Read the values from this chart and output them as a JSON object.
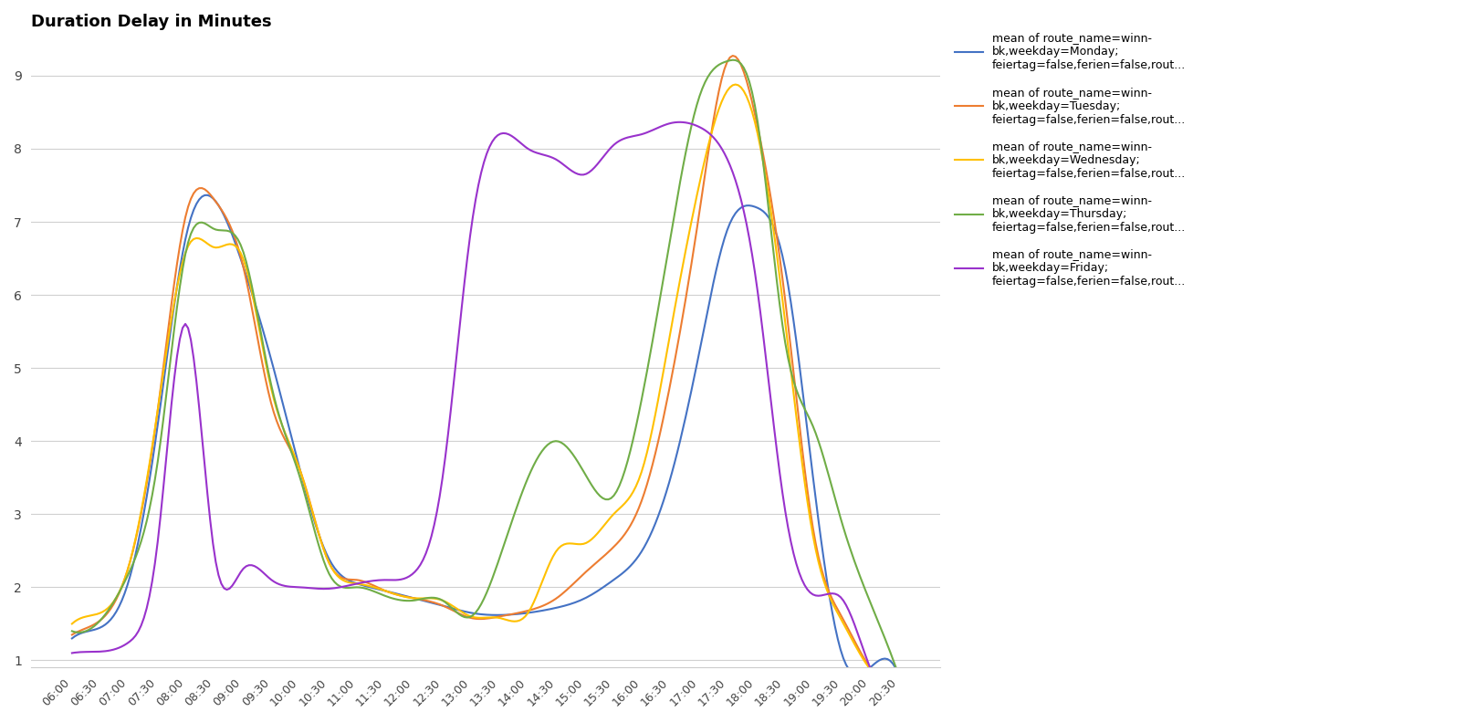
{
  "title": "Duration Delay in Minutes",
  "colors": {
    "monday": "#4472c4",
    "tuesday": "#ed7d31",
    "wednesday": "#ffc000",
    "thursday": "#70ad47",
    "friday": "#9932cc"
  },
  "legend_labels": {
    "monday": "mean of route_name=winn-\nbk,weekday=Monday;\nfeiertag=false,ferien=false,rout...",
    "tuesday": "mean of route_name=winn-\nbk,weekday=Tuesday;\nfeiertag=false,ferien=false,rout...",
    "wednesday": "mean of route_name=winn-\nbk,weekday=Wednesday;\nfeiertag=false,ferien=false,rout...",
    "thursday": "mean of route_name=winn-\nbk,weekday=Thursday;\nfeiertag=false,ferien=false,rout...",
    "friday": "mean of route_name=winn-\nbk,weekday=Friday;\nfeiertag=false,ferien=false,rout..."
  },
  "x_ticks": [
    "06:00",
    "06:30",
    "07:00",
    "07:30",
    "08:00",
    "08:30",
    "09:00",
    "09:30",
    "10:00",
    "10:30",
    "11:00",
    "11:30",
    "12:00",
    "12:30",
    "13:00",
    "13:30",
    "14:00",
    "14:30",
    "15:00",
    "15:30",
    "16:00",
    "16:30",
    "17:00",
    "17:30",
    "18:00",
    "18:30",
    "19:00",
    "19:30",
    "20:00",
    "20:30"
  ],
  "ylim_min": 0.9,
  "ylim_max": 9.5,
  "yticks": [
    1,
    2,
    3,
    4,
    5,
    6,
    7,
    8,
    9
  ],
  "data": {
    "monday": [
      1.3,
      1.45,
      2.1,
      4.2,
      6.8,
      7.3,
      6.4,
      5.1,
      3.6,
      2.4,
      2.05,
      1.95,
      1.85,
      1.75,
      1.65,
      1.62,
      1.65,
      1.72,
      1.85,
      2.1,
      2.5,
      3.5,
      5.2,
      6.9,
      7.2,
      6.4,
      3.5,
      1.1,
      0.9,
      0.8
    ],
    "tuesday": [
      1.35,
      1.55,
      2.3,
      4.4,
      7.1,
      7.3,
      6.4,
      4.5,
      3.6,
      2.35,
      2.1,
      1.95,
      1.85,
      1.75,
      1.58,
      1.6,
      1.68,
      1.85,
      2.2,
      2.55,
      3.2,
      4.8,
      7.1,
      9.2,
      8.4,
      6.0,
      2.8,
      1.6,
      0.9,
      0.8
    ],
    "wednesday": [
      1.5,
      1.65,
      2.3,
      4.4,
      6.6,
      6.65,
      6.5,
      4.7,
      3.6,
      2.35,
      2.05,
      1.95,
      1.85,
      1.82,
      1.6,
      1.58,
      1.65,
      2.5,
      2.6,
      3.0,
      3.6,
      5.5,
      7.5,
      8.8,
      8.3,
      5.7,
      2.7,
      1.55,
      0.88,
      0.8
    ],
    "thursday": [
      1.4,
      1.55,
      2.2,
      3.7,
      6.6,
      6.9,
      6.6,
      4.75,
      3.5,
      2.2,
      2.0,
      1.88,
      1.82,
      1.82,
      1.6,
      2.4,
      3.5,
      4.0,
      3.55,
      3.25,
      4.6,
      6.8,
      8.7,
      9.2,
      8.5,
      5.4,
      4.2,
      2.9,
      1.8,
      0.8
    ],
    "friday": [
      1.1,
      1.12,
      1.25,
      2.6,
      5.6,
      2.45,
      2.25,
      2.1,
      2.0,
      1.98,
      2.05,
      2.1,
      2.2,
      3.5,
      6.9,
      8.2,
      8.0,
      7.85,
      7.65,
      8.05,
      8.2,
      8.35,
      8.3,
      7.85,
      6.2,
      3.1,
      1.9,
      1.85,
      0.9,
      0.8
    ]
  }
}
